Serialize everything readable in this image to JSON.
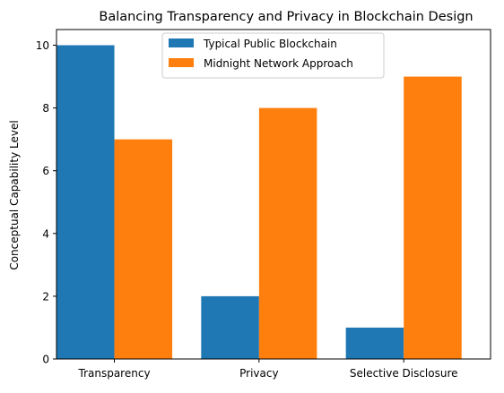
{
  "chart_data": {
    "type": "bar",
    "title": "Balancing Transparency and Privacy in Blockchain Design",
    "xlabel": "",
    "ylabel": "Conceptual Capability Level",
    "categories": [
      "Transparency",
      "Privacy",
      "Selective Disclosure"
    ],
    "series": [
      {
        "name": "Typical Public Blockchain",
        "color": "#1f77b4",
        "values": [
          10,
          2,
          1
        ]
      },
      {
        "name": "Midnight Network Approach",
        "color": "#ff7f0e",
        "values": [
          7,
          8,
          9
        ]
      }
    ],
    "ylim": [
      0,
      10.5
    ],
    "yticks": [
      0,
      2,
      4,
      6,
      8,
      10
    ],
    "grid": false,
    "legend": "upper-center"
  }
}
